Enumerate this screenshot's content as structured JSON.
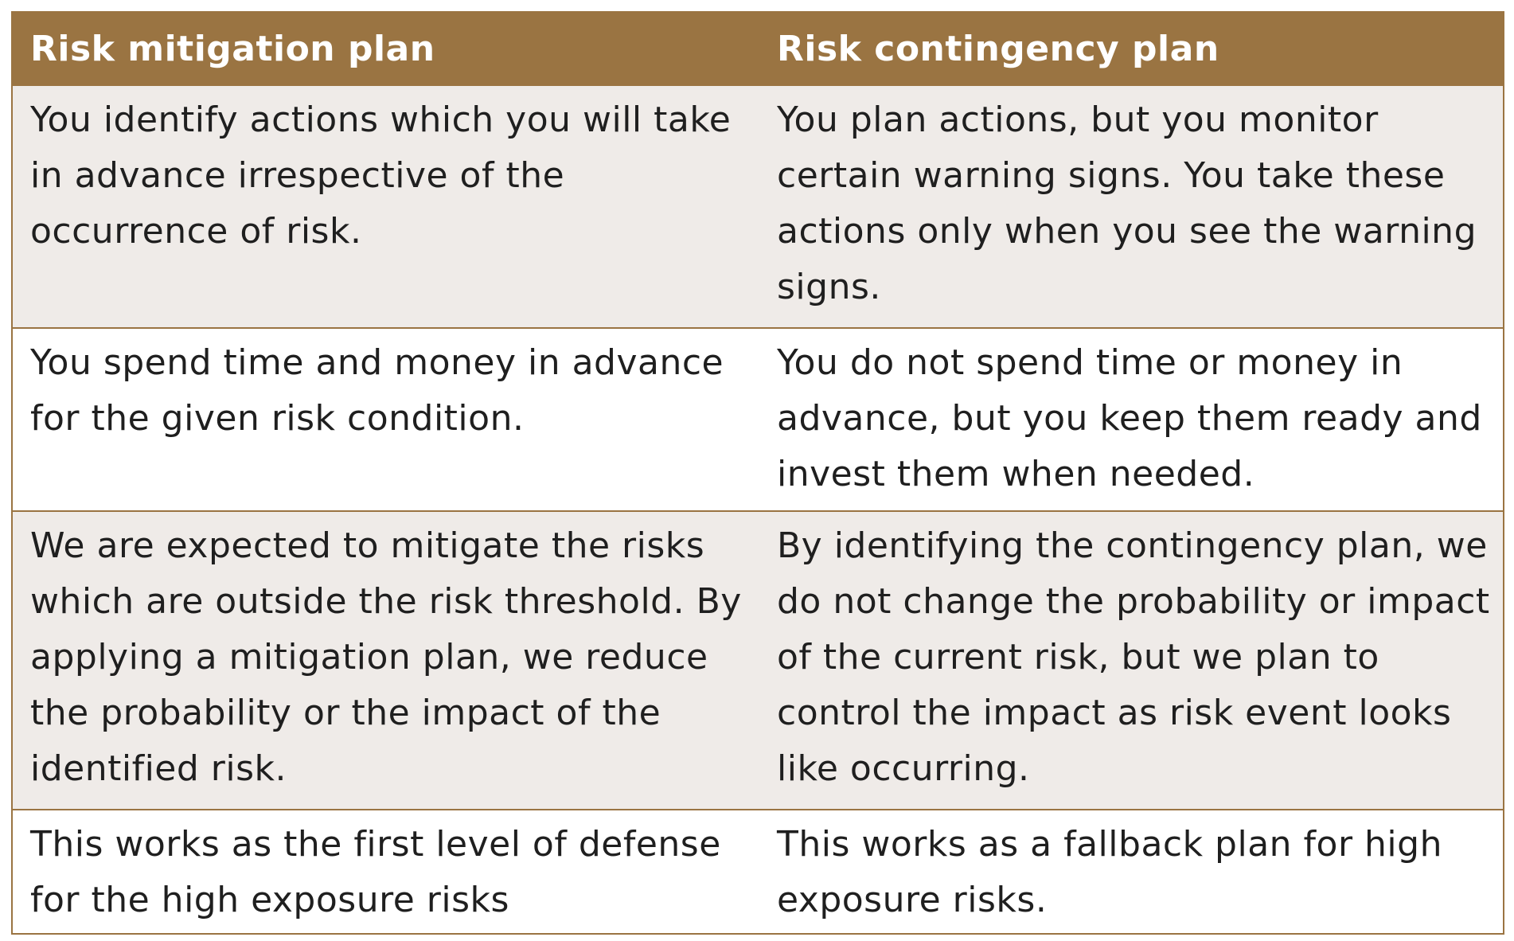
{
  "headers": {
    "mitigation": "Risk mitigation plan",
    "contingency": "Risk contingency plan"
  },
  "rows": [
    {
      "mitigation": "You identify actions which you will take in advance irrespective of the occurrence of risk.",
      "contingency": "You plan actions, but you monitor certain warning signs. You take these actions only when you see the warning signs."
    },
    {
      "mitigation": "You spend time and money in advance for the given risk condition.",
      "contingency": "You do not spend time or money in advance, but you keep them ready and invest them when needed."
    },
    {
      "mitigation": "We are expected to mitigate the risks which are outside the risk threshold. By applying a mitigation plan, we reduce the probability or the impact of the identified risk.",
      "contingency": "By identifying the contingency plan, we do not change the probability or impact of the current risk, but we plan to control the impact as risk event looks like occurring."
    },
    {
      "mitigation": "This works as the first level of defense for the high exposure risks",
      "contingency": "This works as a fallback plan for high exposure risks."
    }
  ],
  "colors": {
    "header_bg": "#9a7442",
    "shaded_row": "#efebe8",
    "plain_row": "#ffffff",
    "text": "#1f1f1f"
  }
}
